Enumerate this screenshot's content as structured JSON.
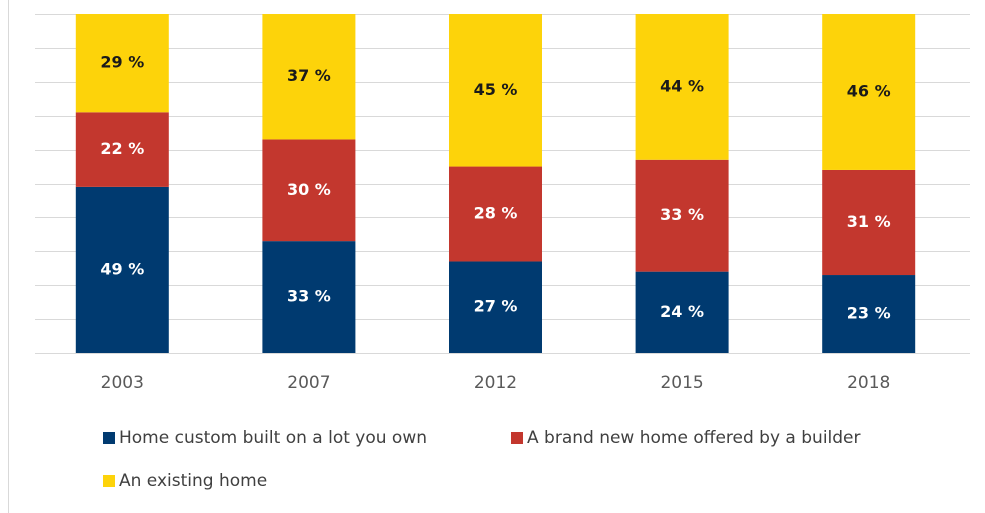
{
  "chart_data": {
    "type": "stacked_bar",
    "categories": [
      "2003",
      "2007",
      "2012",
      "2015",
      "2018"
    ],
    "series": [
      {
        "name": "Home custom built on a lot you own",
        "color": "#003a70",
        "values": [
          49,
          33,
          27,
          24,
          23
        ],
        "value_labels": [
          "49 %",
          "33 %",
          "27 %",
          "24 %",
          "23 %"
        ]
      },
      {
        "name": "A brand new home offered by a builder",
        "color": "#c3372e",
        "values": [
          22,
          30,
          28,
          33,
          31
        ],
        "value_labels": [
          "22 %",
          "30 %",
          "28 %",
          "33 %",
          "31 %"
        ]
      },
      {
        "name": "An existing home",
        "color": "#fdd30a",
        "values": [
          29,
          37,
          45,
          44,
          46
        ],
        "value_labels": [
          "29 %",
          "37 %",
          "45 %",
          "44 %",
          "46 %"
        ]
      }
    ],
    "ylim": [
      0,
      100
    ],
    "yticks": [
      0,
      10,
      20,
      30,
      40,
      50,
      60,
      70,
      80,
      90,
      100
    ],
    "grid": true
  }
}
